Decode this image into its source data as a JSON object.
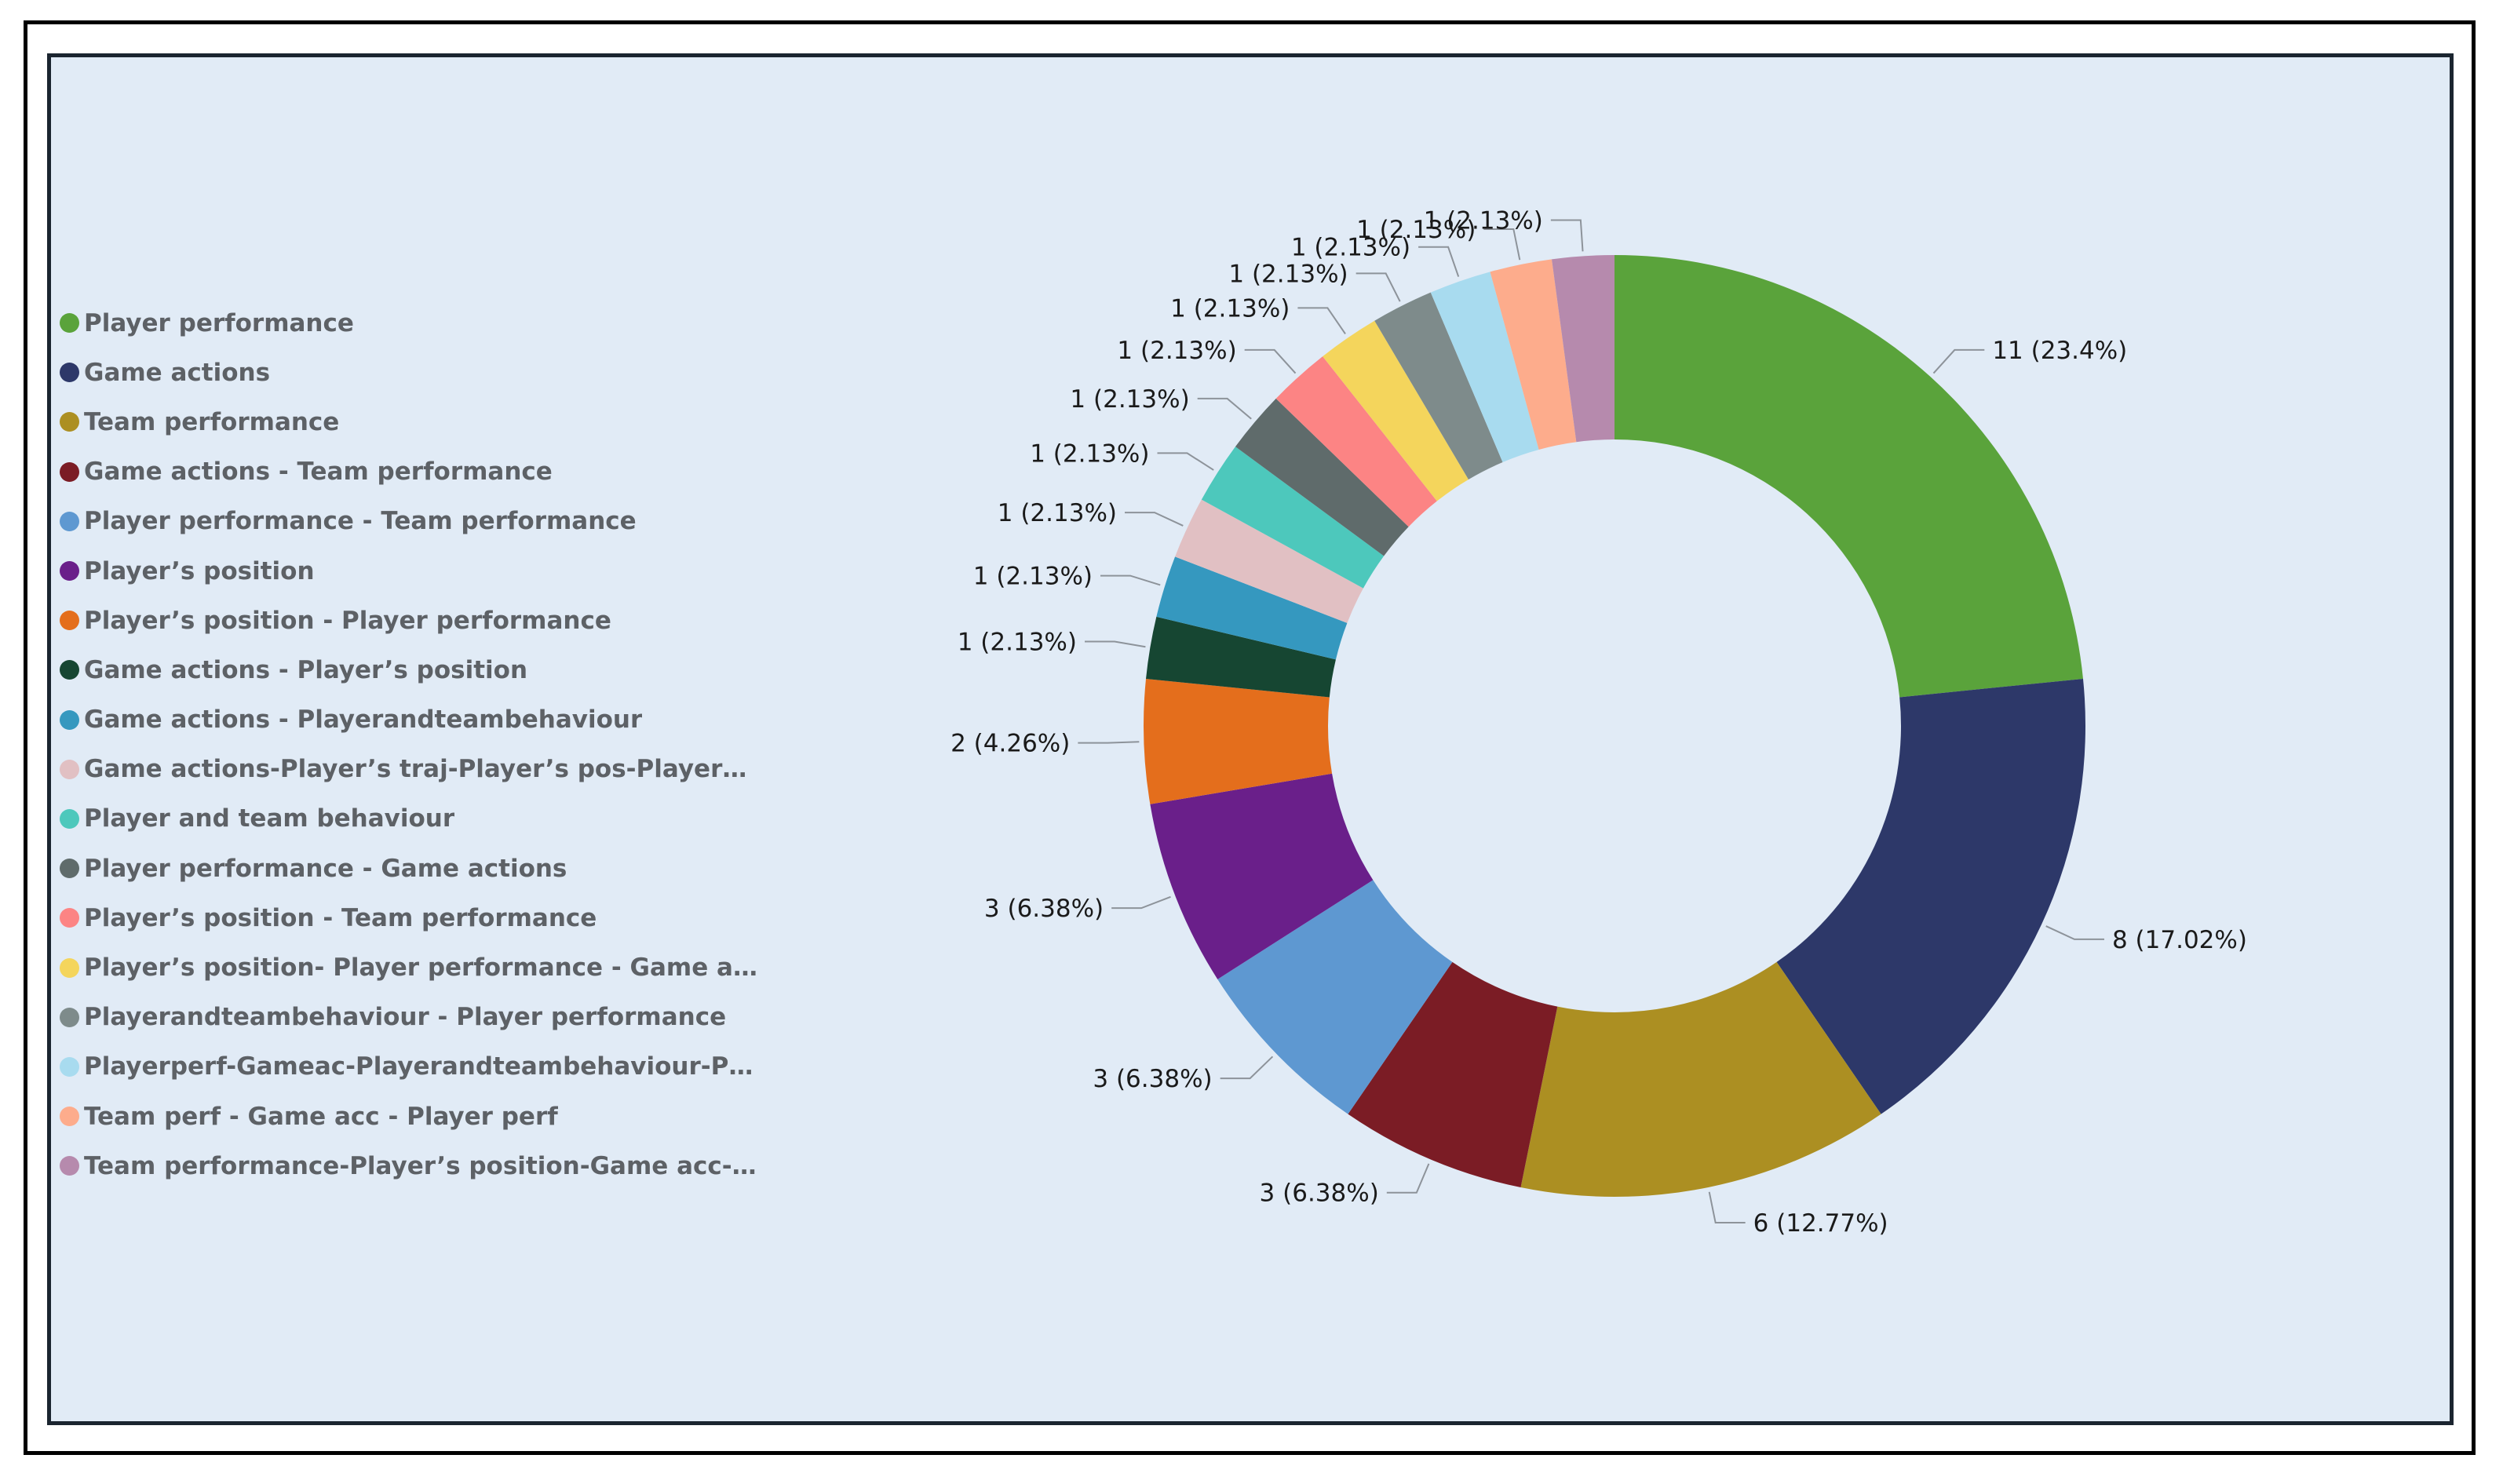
{
  "chart_data": {
    "type": "pie",
    "variant": "donut",
    "title": "",
    "legend_position": "left",
    "categories": [
      "Player performance",
      "Game actions",
      "Team performance",
      "Game actions - Team performance",
      "Player performance - Team performance",
      "Player’s position",
      "Player’s position - Player performance",
      "Game actions - Player’s position",
      "Game actions - Playerandteambehaviour",
      "Game actions-Player’s traj-Player’s pos-Playerandte...",
      "Player and team behaviour",
      "Player performance - Game actions",
      "Player’s position - Team performance",
      "Player’s position- Player performance - Game actions",
      "Playerandteambehaviour - Player performance",
      "Playerperf-Gameac-Playerandteambehaviour-Player...",
      "Team perf - Game acc - Player perf",
      "Team performance-Player’s position-Game acc-Play..."
    ],
    "values": [
      11,
      8,
      6,
      3,
      3,
      3,
      2,
      1,
      1,
      1,
      1,
      1,
      1,
      1,
      1,
      1,
      1,
      1
    ],
    "data_labels": [
      "11 (23.4%)",
      "8 (17.02%)",
      "6 (12.77%)",
      "3 (6.38%)",
      "3 (6.38%)",
      "3 (6.38%)",
      "2 (4.26%)",
      "1 (2.13%)",
      "1 (2.13%)",
      "1 (2.13%)",
      "1 (2.13%)",
      "1 (2.13%)",
      "1 (2.13%)",
      "1 (2.13%)",
      "1 (2.13%)",
      "1 (2.13%)",
      "1 (2.13%)",
      "1 (2.13%)"
    ],
    "colors": [
      "#5aa33b",
      "#2d3869",
      "#ac8f22",
      "#7b1c25",
      "#5e98d1",
      "#6a1f8a",
      "#e46e1c",
      "#164632",
      "#3598bf",
      "#e1c0c3",
      "#4dc8bc",
      "#5f6b6b",
      "#fc8484",
      "#f4d55c",
      "#7e8b8b",
      "#a8dbef",
      "#fdac8c",
      "#b68aad"
    ]
  }
}
